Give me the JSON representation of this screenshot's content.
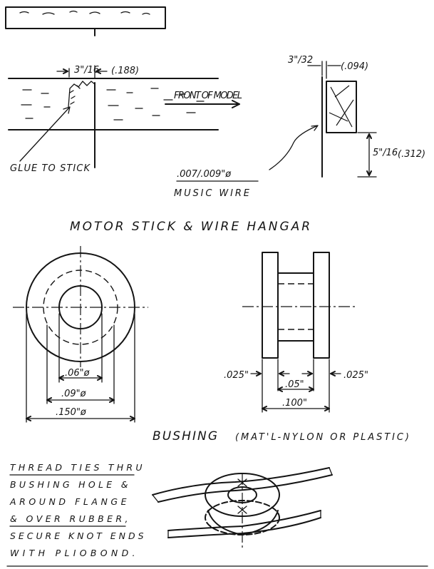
{
  "top_view": {
    "dim_width": "3\"/16",
    "dim_decimal": "(.188)",
    "arrow_label": "FRONT OF MODEL",
    "glue_label": "GLUE TO STICK"
  },
  "side_view": {
    "dim_gap": "3\"/32",
    "dim_gap_decimal": "(.094)",
    "wire_gauge": ".007/.009\"ø",
    "wire_label": "MUSIC WIRE",
    "dim_hanger": "5\"/16",
    "dim_hanger_decimal": "(.312)"
  },
  "section_1_title": "MOTOR STICK & WIRE HANGAR",
  "bushing_front": {
    "dim_inner": ".06\"ø",
    "dim_middle": ".09\"ø",
    "dim_outer": ".150\"ø"
  },
  "bushing_side": {
    "dim_flange_left": ".025\"",
    "dim_flange_right": ".025\"",
    "dim_hub": ".05\"",
    "dim_total": ".100\""
  },
  "section_2_title": "BUSHING",
  "section_2_material": "(MAT'L-NYLON OR PLASTIC)",
  "thread_note": [
    "THREAD TIES THRU",
    "BUSHING HOLE &",
    "AROUND FLANGE",
    "& OVER RUBBER,",
    "SECURE KNOT ENDS",
    "WITH PLIOBOND."
  ]
}
